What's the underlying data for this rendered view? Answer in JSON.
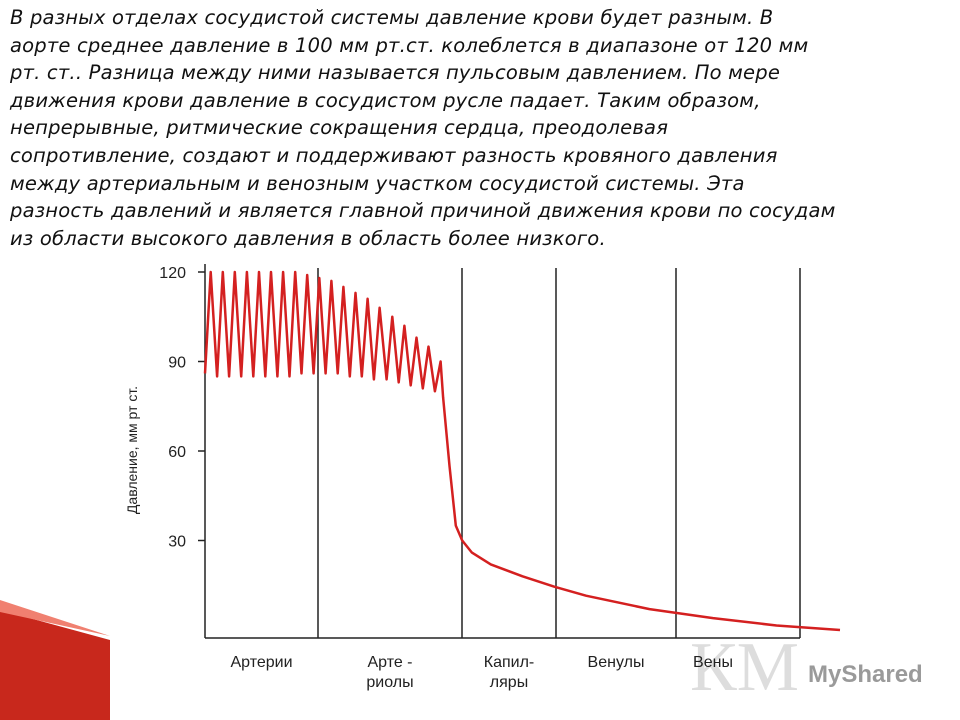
{
  "paragraph": [
    "В разных отделах сосудистой системы давление крови будет разным. В",
    "аорте среднее давление в 100 мм рт.ст. колеблется в диапазоне от 120 мм",
    "рт. ст.. Разница между ними называется пульсовым давлением. По мере",
    "движения крови давление в сосудистом русле падает. Таким образом,",
    "непрерывные, ритмические сокращения сердца, преодолевая",
    "сопротивление, создают и поддерживают разность кровяного давления",
    "между артериальным и венозным участком сосудистой системы. Эта",
    "разность давлений и является главной причиной движения крови по сосудам",
    "из области высокого давления в область более низкого."
  ],
  "watermark": "MyShared",
  "chart_data": {
    "type": "line",
    "y_label": "Давление, мм рт ст.",
    "categories": [
      [
        "Артерии"
      ],
      [
        "Арте -",
        "риолы"
      ],
      [
        "Капил-",
        "ляры"
      ],
      [
        "Венулы"
      ],
      [
        "Вены"
      ]
    ],
    "xlim": [
      0,
      100
    ],
    "ylim": [
      0,
      120
    ],
    "yticks": [
      30,
      60,
      90,
      120
    ],
    "series": [
      {
        "color": "#d42020",
        "x": [
          0,
          0.9,
          1.9,
          2.8,
          3.8,
          4.7,
          5.7,
          6.6,
          7.6,
          8.5,
          9.5,
          10.4,
          11.4,
          12.3,
          13.3,
          14.2,
          15.2,
          16.1,
          17.1,
          18.0,
          19.0,
          19.9,
          20.9,
          21.8,
          22.8,
          23.7,
          24.7,
          25.6,
          26.6,
          27.5,
          28.6,
          29.5,
          30.5,
          31.4,
          32.4,
          33.3,
          34.3,
          35.2,
          36.2,
          37.1,
          37.5,
          38.5,
          39.5,
          40.5,
          42,
          45,
          50,
          55,
          60,
          70,
          80,
          90,
          100
        ],
        "values": [
          86,
          120,
          85,
          120,
          85,
          120,
          85,
          120,
          85,
          120,
          85,
          120,
          85,
          120,
          85,
          120,
          86,
          119,
          86,
          118,
          86,
          117,
          86,
          115,
          85,
          113,
          85,
          111,
          84,
          108,
          84,
          105,
          83,
          102,
          82,
          98,
          81,
          95,
          80,
          90,
          78,
          55,
          35,
          30,
          26,
          22,
          18,
          14.5,
          11.5,
          7,
          4,
          1.5,
          0
        ]
      }
    ]
  }
}
